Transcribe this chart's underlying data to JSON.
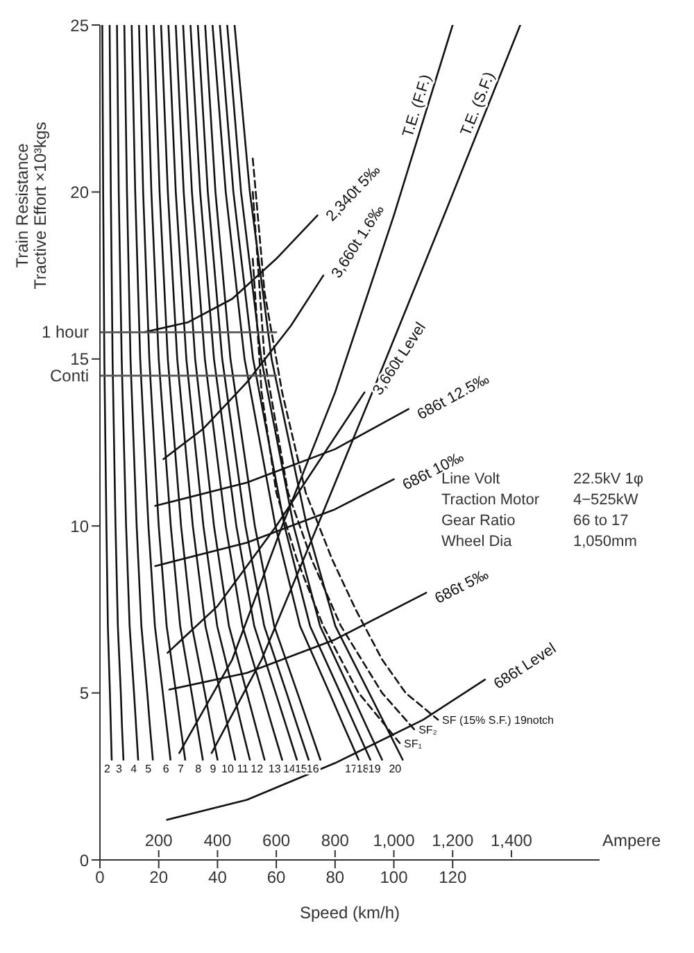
{
  "chart_data": {
    "type": "line",
    "xlabel": "Speed (km/h)",
    "x2label": "Ampere",
    "ylabel": "Train Resistance\nTractive Effort ×10³kgs",
    "xlim": [
      0,
      170
    ],
    "xticks": [
      0,
      20,
      40,
      60,
      80,
      100,
      120
    ],
    "x2lim": [
      0,
      1700
    ],
    "x2ticks": [
      200,
      400,
      600,
      800,
      {
        "value": 1000,
        "label": "1,000"
      },
      {
        "value": 1200,
        "label": "1,200"
      },
      {
        "value": 1400,
        "label": "1,400"
      }
    ],
    "ylim": [
      0,
      25
    ],
    "yticks": [
      0,
      5,
      10,
      15,
      20,
      25
    ],
    "annotations": [
      "Line Volt",
      "22.5kV 1φ",
      "Traction Motor",
      "4−525kW",
      "Gear Ratio",
      "66 to 17",
      "Wheel Dia",
      "1,050mm"
    ],
    "series": [
      {
        "name": "2",
        "color": "#111111",
        "x": [
          0.8,
          1.1,
          1.5,
          2.2,
          2.7,
          3.4,
          3.7,
          4
        ],
        "values": [
          25,
          20,
          15,
          10,
          7,
          5,
          4,
          3
        ]
      },
      {
        "name": "3",
        "color": "#111111",
        "x": [
          3.3,
          3.7,
          4.3,
          5.3,
          6.1,
          7.1,
          7.5,
          8
        ],
        "values": [
          25,
          20,
          15,
          10,
          7,
          5,
          4,
          3
        ]
      },
      {
        "name": "4",
        "color": "#111111",
        "x": [
          5.8,
          6.4,
          7.4,
          8.9,
          10.1,
          11.6,
          12.3,
          13
        ],
        "values": [
          25,
          20,
          15,
          10,
          7,
          5,
          4,
          3
        ]
      },
      {
        "name": "5",
        "color": "#111111",
        "x": [
          8.3,
          9.2,
          10.4,
          12.5,
          14.1,
          16.1,
          17,
          18
        ],
        "values": [
          25,
          20,
          15,
          10,
          7,
          5,
          4,
          3
        ]
      },
      {
        "name": "6",
        "color": "#111111",
        "x": [
          10.8,
          12,
          13.7,
          16.5,
          18.7,
          21.4,
          22.7,
          24
        ],
        "values": [
          25,
          20,
          15,
          10,
          7,
          5,
          4,
          3
        ]
      },
      {
        "name": "7",
        "color": "#111111",
        "x": [
          13.3,
          14.7,
          16.8,
          20,
          22.7,
          25.9,
          27.4,
          29
        ],
        "values": [
          25,
          20,
          15,
          10,
          7,
          5,
          4,
          3
        ]
      },
      {
        "name": "8",
        "color": "#111111",
        "x": [
          15.8,
          17.5,
          20,
          24.1,
          27.3,
          31.2,
          33.1,
          35
        ],
        "values": [
          25,
          20,
          15,
          10,
          7,
          5,
          4,
          3
        ]
      },
      {
        "name": "9",
        "color": "#111111",
        "x": [
          18.3,
          20.3,
          23.1,
          27.6,
          31.3,
          35.7,
          37.8,
          40
        ],
        "values": [
          25,
          20,
          15,
          10,
          7,
          5,
          4,
          3
        ]
      },
      {
        "name": "10",
        "color": "#111111",
        "x": [
          20.8,
          23.1,
          26.3,
          31.6,
          35.9,
          41,
          43.5,
          46
        ],
        "values": [
          25,
          20,
          15,
          10,
          7,
          5,
          4,
          3
        ]
      },
      {
        "name": "11",
        "color": "#111111",
        "x": [
          23.3,
          25.8,
          29.4,
          35.2,
          39.9,
          45.5,
          48.2,
          51
        ],
        "values": [
          25,
          20,
          15,
          10,
          7,
          5,
          4,
          3
        ]
      },
      {
        "name": "12",
        "color": "#111111",
        "x": [
          25.8,
          28.5,
          32.4,
          38.8,
          43.9,
          50,
          53,
          56
        ],
        "values": [
          25,
          20,
          15,
          10,
          7,
          5,
          4,
          3
        ]
      },
      {
        "name": "13",
        "color": "#111111",
        "x": [
          28.3,
          31.3,
          35.7,
          42.8,
          48.5,
          55.3,
          58.6,
          62
        ],
        "values": [
          25,
          20,
          15,
          10,
          7,
          5,
          4,
          3
        ]
      },
      {
        "name": "14",
        "color": "#111111",
        "x": [
          30.8,
          34.1,
          38.8,
          46.4,
          52.5,
          59.8,
          63.4,
          67
        ],
        "values": [
          25,
          20,
          15,
          10,
          7,
          5,
          4,
          3
        ]
      },
      {
        "name": "15",
        "color": "#111111",
        "x": [
          33.3,
          36.7,
          41.6,
          49.5,
          55.9,
          63.5,
          67.2,
          71
        ],
        "values": [
          25,
          20,
          15,
          10,
          7,
          5,
          4,
          3
        ]
      },
      {
        "name": "16",
        "color": "#111111",
        "x": [
          35.8,
          39.3,
          44.4,
          52.7,
          59.3,
          67.2,
          71.1,
          75
        ],
        "values": [
          25,
          20,
          15,
          10,
          7,
          5,
          4,
          3
        ]
      },
      {
        "name": "17",
        "color": "#111111",
        "x": [
          38.3,
          42.8,
          49.2,
          59.7,
          68.1,
          78.1,
          83,
          88
        ],
        "values": [
          25,
          20,
          15,
          10,
          7,
          5,
          4,
          3
        ]
      },
      {
        "name": "18",
        "color": "#111111",
        "x": [
          40.8,
          45.4,
          52.1,
          62.8,
          71.5,
          81.8,
          86.9,
          92
        ],
        "values": [
          25,
          20,
          15,
          10,
          7,
          5,
          4,
          3
        ]
      },
      {
        "name": "19",
        "color": "#111111",
        "x": [
          43.3,
          48,
          54.9,
          65.9,
          74.9,
          85.5,
          90.7,
          96
        ],
        "values": [
          25,
          20,
          15,
          10,
          7,
          5,
          4,
          3
        ]
      },
      {
        "name": "20",
        "color": "#111111",
        "x": [
          45.8,
          51,
          58.4,
          70.4,
          80.1,
          91.6,
          97.3,
          103
        ],
        "values": [
          25,
          20,
          15,
          10,
          7,
          5,
          4,
          3
        ]
      },
      {
        "name": "SF₁",
        "color": "#111111",
        "line_style": "dashed",
        "x": [
          52,
          55,
          60,
          67,
          76,
          88,
          102
        ],
        "values": [
          18,
          14,
          11,
          9,
          7,
          5,
          3.5
        ]
      },
      {
        "name": "SF₂",
        "color": "#111111",
        "line_style": "dashed",
        "x": [
          52,
          56,
          64,
          72,
          82,
          96,
          107
        ],
        "values": [
          20,
          15,
          11,
          9,
          7,
          5,
          3.9
        ]
      },
      {
        "name": "SF (15% S.F.) 19notch",
        "color": "#111111",
        "line_style": "dashed",
        "x": [
          52,
          56,
          62,
          70,
          79,
          87,
          96,
          104,
          115
        ],
        "values": [
          21,
          17,
          14,
          11,
          9,
          7.5,
          6,
          5,
          4.2
        ]
      },
      {
        "name": "T.E. (F.F.)",
        "color": "#111111",
        "x": [
          27,
          45,
          62,
          80,
          100,
          120
        ],
        "values": [
          3.2,
          6,
          10,
          14,
          19.3,
          25
        ]
      },
      {
        "name": "T.E. (S.F.)",
        "color": "#111111",
        "x": [
          38,
          55,
          74,
          95,
          118,
          143
        ],
        "values": [
          3.2,
          6,
          10,
          14.5,
          19.5,
          25
        ]
      },
      {
        "name": "2,340t 5‰",
        "color": "#111111",
        "x": [
          15,
          30,
          45,
          60,
          74
        ],
        "values": [
          15.8,
          16.1,
          16.8,
          18,
          19.3
        ]
      },
      {
        "name": "3,660t 1.6‰",
        "color": "#111111",
        "x": [
          21.6,
          35,
          50,
          65,
          76
        ],
        "values": [
          12,
          12.9,
          14.3,
          16,
          17.5
        ]
      },
      {
        "name": "3,660t Level",
        "color": "#111111",
        "x": [
          23,
          40,
          60,
          75,
          90
        ],
        "values": [
          6.2,
          7.6,
          10,
          12,
          14
        ]
      },
      {
        "name": "686t 12.5‰",
        "color": "#111111",
        "x": [
          18.8,
          50,
          80,
          105
        ],
        "values": [
          10.6,
          11.3,
          12.3,
          13.5
        ]
      },
      {
        "name": "686t 10‰",
        "color": "#111111",
        "x": [
          18.8,
          50,
          80,
          100
        ],
        "values": [
          8.8,
          9.5,
          10.5,
          11.4
        ]
      },
      {
        "name": "686t 5‰",
        "color": "#111111",
        "x": [
          23.6,
          50,
          80,
          111
        ],
        "values": [
          5.1,
          5.6,
          6.6,
          8
        ]
      },
      {
        "name": "686t Level",
        "color": "#111111",
        "x": [
          22.8,
          50,
          80,
          110,
          131
        ],
        "values": [
          1.2,
          1.8,
          2.9,
          4.2,
          5.4
        ]
      },
      {
        "name": "1 hour",
        "color": "#555555",
        "x": [
          60,
          0
        ],
        "values": [
          15.8,
          15.8
        ]
      },
      {
        "name": "Conti",
        "color": "#555555",
        "x": [
          60,
          0
        ],
        "values": [
          14.5,
          14.5
        ]
      }
    ]
  }
}
